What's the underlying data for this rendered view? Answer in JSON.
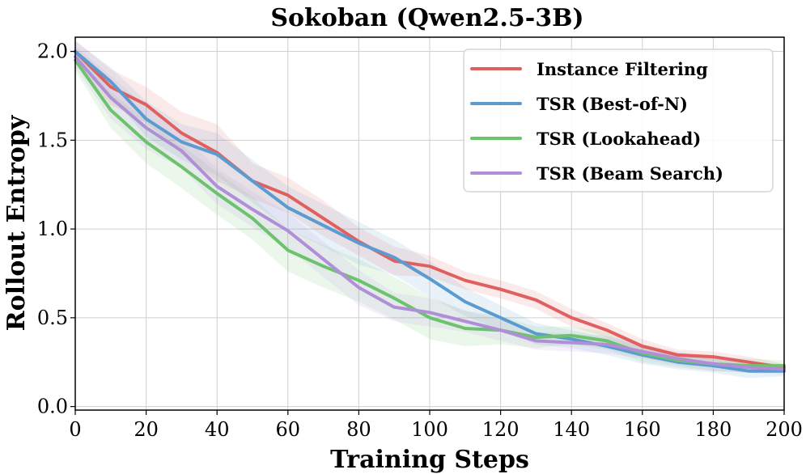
{
  "chart_data": {
    "type": "line",
    "title": "Sokoban (Qwen2.5-3B)",
    "xlabel": "Training Steps",
    "ylabel": "Rollout Entropy",
    "xlim": [
      0,
      200
    ],
    "ylim": [
      -0.02,
      2.08
    ],
    "xticks": [
      0,
      20,
      40,
      60,
      80,
      100,
      120,
      140,
      160,
      180,
      200
    ],
    "yticks": [
      0.0,
      0.5,
      1.0,
      1.5,
      2.0
    ],
    "xtick_labels": [
      "0",
      "20",
      "40",
      "60",
      "80",
      "100",
      "120",
      "140",
      "160",
      "180",
      "200"
    ],
    "ytick_labels": [
      "0.0",
      "0.5",
      "1.0",
      "1.5",
      "2.0"
    ],
    "grid": true,
    "legend_position": "top-right",
    "x": [
      0,
      10,
      20,
      30,
      40,
      50,
      60,
      70,
      80,
      90,
      100,
      110,
      120,
      130,
      140,
      150,
      160,
      170,
      180,
      190,
      200
    ],
    "series": [
      {
        "name": "Instance Filtering",
        "color": "#e06060",
        "values": [
          2.0,
          1.8,
          1.7,
          1.54,
          1.43,
          1.27,
          1.19,
          1.06,
          0.93,
          0.82,
          0.79,
          0.71,
          0.66,
          0.6,
          0.5,
          0.43,
          0.34,
          0.29,
          0.28,
          0.25,
          0.22
        ],
        "band": [
          0.06,
          0.1,
          0.1,
          0.12,
          0.16,
          0.1,
          0.1,
          0.1,
          0.08,
          0.08,
          0.06,
          0.05,
          0.05,
          0.05,
          0.05,
          0.04,
          0.04,
          0.03,
          0.03,
          0.03,
          0.02
        ]
      },
      {
        "name": "TSR (Best-of-N)",
        "color": "#5b9bd0",
        "values": [
          2.0,
          1.83,
          1.62,
          1.49,
          1.42,
          1.27,
          1.12,
          1.02,
          0.92,
          0.84,
          0.72,
          0.59,
          0.5,
          0.41,
          0.38,
          0.34,
          0.29,
          0.25,
          0.23,
          0.2,
          0.2
        ],
        "band": [
          0.06,
          0.08,
          0.1,
          0.1,
          0.12,
          0.12,
          0.12,
          0.12,
          0.12,
          0.1,
          0.1,
          0.08,
          0.07,
          0.06,
          0.05,
          0.05,
          0.05,
          0.04,
          0.04,
          0.04,
          0.03
        ]
      },
      {
        "name": "TSR (Lookahead)",
        "color": "#6dc26d",
        "values": [
          1.95,
          1.67,
          1.49,
          1.35,
          1.2,
          1.06,
          0.88,
          0.79,
          0.71,
          0.61,
          0.5,
          0.44,
          0.43,
          0.39,
          0.4,
          0.37,
          0.3,
          0.26,
          0.24,
          0.23,
          0.23
        ],
        "band": [
          0.06,
          0.1,
          0.12,
          0.12,
          0.12,
          0.12,
          0.12,
          0.12,
          0.12,
          0.12,
          0.12,
          0.1,
          0.08,
          0.06,
          0.05,
          0.05,
          0.05,
          0.04,
          0.04,
          0.04,
          0.03
        ]
      },
      {
        "name": "TSR (Beam Search)",
        "color": "#b08fd8",
        "values": [
          1.97,
          1.74,
          1.57,
          1.44,
          1.24,
          1.11,
          0.99,
          0.83,
          0.67,
          0.56,
          0.53,
          0.48,
          0.43,
          0.37,
          0.36,
          0.35,
          0.31,
          0.27,
          0.24,
          0.22,
          0.21
        ],
        "band": [
          0.06,
          0.12,
          0.12,
          0.1,
          0.1,
          0.1,
          0.1,
          0.1,
          0.1,
          0.08,
          0.08,
          0.06,
          0.06,
          0.05,
          0.05,
          0.05,
          0.04,
          0.04,
          0.04,
          0.03,
          0.03
        ]
      }
    ]
  }
}
